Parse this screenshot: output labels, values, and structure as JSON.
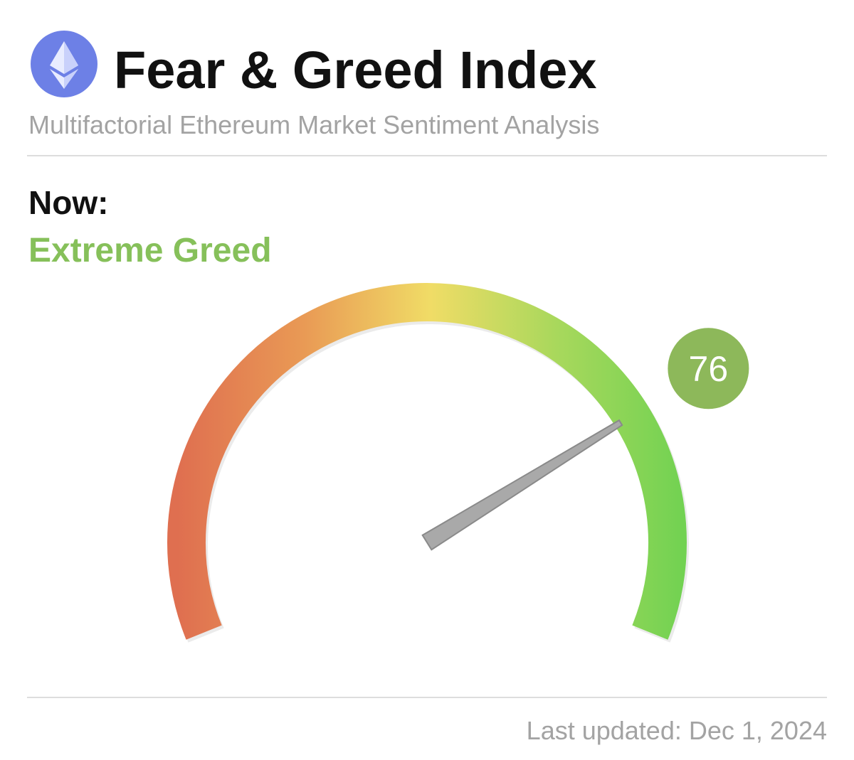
{
  "chart_data": {
    "type": "gauge",
    "title": "Fear & Greed Index",
    "subtitle": "Multifactorial Ethereum Market Sentiment Analysis",
    "status_heading": "Now:",
    "status": "Extreme Greed",
    "value": 76,
    "ylim": [
      0,
      100
    ],
    "footer": "Last updated: Dec 1, 2024"
  }
}
